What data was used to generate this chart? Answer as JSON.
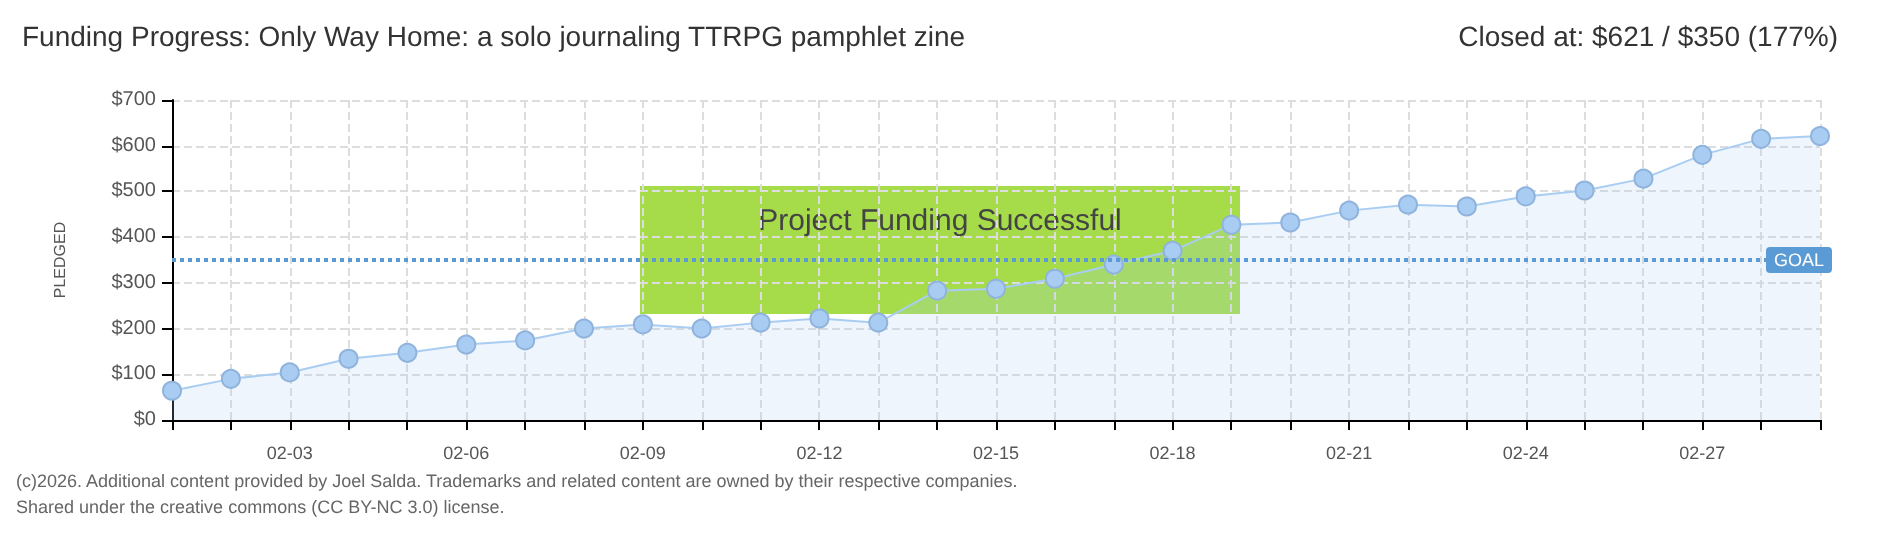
{
  "chart_data": {
    "type": "area",
    "title": "Funding Progress: Only Way Home: a solo journaling TTRPG pamphlet zine",
    "subtitle": "Closed at: $621 / $350 (177%)",
    "ylabel": "PLEDGED",
    "annotations": [
      "Project Funding Successful",
      "(c)2026. Additional content provided by Joel Salda. Trademarks and related content are owned by their respective companies.",
      "Shared under the creative commons (CC BY-NC 3.0) license."
    ],
    "categories": [
      null,
      null,
      "02-03",
      null,
      null,
      "02-06",
      null,
      null,
      "02-09",
      null,
      null,
      "02-12",
      null,
      null,
      "02-15",
      null,
      null,
      "02-18",
      null,
      null,
      "02-21",
      null,
      null,
      "02-24",
      null,
      null,
      "02-27",
      null,
      null
    ],
    "series": [
      {
        "color": "#a9cdf2",
        "values": [
          64,
          90,
          104,
          134,
          147,
          165,
          174,
          200,
          209,
          200,
          213,
          222,
          213,
          283,
          287,
          309,
          340,
          370,
          427,
          432,
          458,
          471,
          467,
          489,
          502,
          528,
          580,
          615,
          621
        ]
      }
    ],
    "ylim": [
      0,
      700
    ],
    "yticks": [
      {
        "value": 0,
        "label": "$0"
      },
      {
        "value": 100,
        "label": "$100"
      },
      {
        "value": 200,
        "label": "$200"
      },
      {
        "value": 300,
        "label": "$300"
      },
      {
        "value": 400,
        "label": "$400"
      },
      {
        "value": 500,
        "label": "$500"
      },
      {
        "value": 600,
        "label": "$600"
      },
      {
        "value": 700,
        "label": "$700"
      }
    ],
    "ref_lines": [
      {
        "axis": "y",
        "value": 350,
        "label": "GOAL",
        "color": "#5b9bd5",
        "line_style": "dotted"
      }
    ],
    "grid": true,
    "marker": "circle"
  }
}
